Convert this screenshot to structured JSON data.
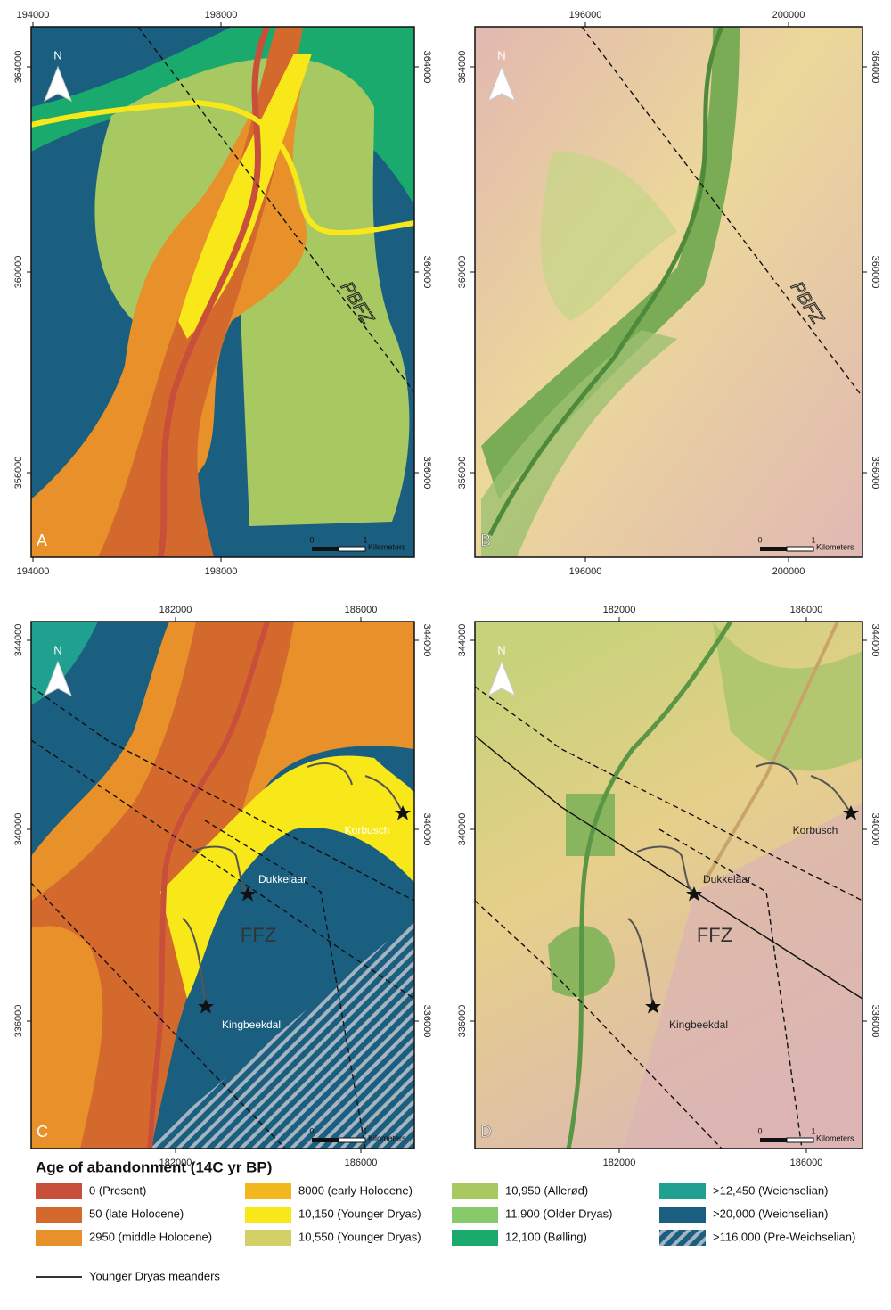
{
  "panels": [
    {
      "letter": "A",
      "north": "N",
      "ticks": {
        "top": [
          "194000",
          "198000"
        ],
        "bottom": [
          "194000",
          "198000"
        ],
        "left": [
          "364000",
          "360000",
          "356000"
        ],
        "right": [
          "364000",
          "360000",
          "356000"
        ]
      },
      "scale": {
        "start": "0",
        "end": "1",
        "unit": "Kilometers"
      },
      "labels": [
        "PBFZ"
      ]
    },
    {
      "letter": "B",
      "north": "N",
      "ticks": {
        "top": [
          "196000",
          "200000"
        ],
        "bottom": [
          "196000",
          "200000"
        ],
        "left": [
          "364000",
          "360000",
          "356000"
        ],
        "right": [
          "364000",
          "360000",
          "356000"
        ]
      },
      "scale": {
        "start": "0",
        "end": "1",
        "unit": "Kilometers"
      },
      "labels": [
        "PBFZ"
      ]
    },
    {
      "letter": "C",
      "north": "N",
      "ticks": {
        "top": [
          "182000",
          "186000"
        ],
        "bottom": [
          "182000",
          "186000"
        ],
        "left": [
          "344000",
          "340000",
          "336000"
        ],
        "right": [
          "344000",
          "340000",
          "336000"
        ]
      },
      "scale": {
        "start": "0",
        "end": "1",
        "unit": "Kilometers"
      },
      "labels": [
        "FFZ",
        "Dukkelaar",
        "Korbusch",
        "Kingbeekdal"
      ]
    },
    {
      "letter": "D",
      "north": "N",
      "ticks": {
        "top": [
          "182000",
          "186000"
        ],
        "bottom": [
          "182000",
          "186000"
        ],
        "left": [
          "344000",
          "340000",
          "336000"
        ],
        "right": [
          "344000",
          "340000",
          "336000"
        ]
      },
      "scale": {
        "start": "0",
        "end": "1",
        "unit": "Kilometers"
      },
      "labels": [
        "FFZ",
        "Dukkelaar",
        "Korbusch",
        "Kingbeekdal"
      ]
    }
  ],
  "legend": {
    "title": "Age of abandonment (14C yr BP)",
    "entries": [
      {
        "label": "0 (Present)",
        "color": "#c8503a"
      },
      {
        "label": "50 (late Holocene)",
        "color": "#d4692e"
      },
      {
        "label": "2950 (middle Holocene)",
        "color": "#e8902a"
      },
      {
        "label": "8000 (early Holocene)",
        "color": "#f0b81c"
      },
      {
        "label": "10,150 (Younger Dryas)",
        "color": "#f8e81a"
      },
      {
        "label": "10,550 (Younger Dryas)",
        "color": "#d4d068"
      },
      {
        "label": "10,950 (Allerød)",
        "color": "#a8c862"
      },
      {
        "label": "11,900 (Older Dryas)",
        "color": "#88c96a"
      },
      {
        "label": "12,100 (Bølling)",
        "color": "#1aaa6e"
      },
      {
        "label": ">12,450 (Weichselian)",
        "color": "#20a090"
      },
      {
        "label": ">20,000 (Weichselian)",
        "color": "#1a5e80"
      },
      {
        "label": ">116,000 (Pre-Weichselian)",
        "color": "hatch"
      }
    ],
    "line_label": "Younger Dryas meanders"
  }
}
